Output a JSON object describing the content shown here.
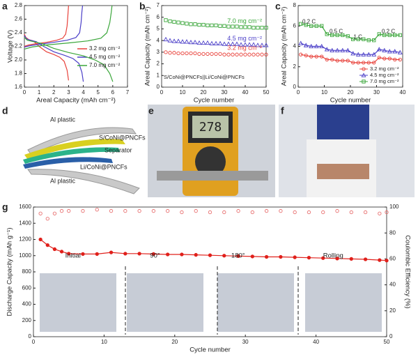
{
  "panels": [
    "a",
    "b",
    "c",
    "d",
    "e",
    "f",
    "g"
  ],
  "schematic_labels": [
    "Al plastic",
    "S/CoNi@PNCFs",
    "Separator",
    "Li/CoNi@PNCFs",
    "Al plastic"
  ],
  "photo_e_display": "278",
  "chart_data": [
    {
      "type": "line",
      "xlabel": "Areal Capacity (mAh cm⁻²)",
      "ylabel": "Voltage (V)",
      "xlim": [
        0,
        7
      ],
      "ylim": [
        1.6,
        2.8
      ],
      "xticks": [
        0,
        1,
        2,
        3,
        4,
        5,
        6,
        7
      ],
      "yticks": [
        1.6,
        1.8,
        {
          "value": 2,
          "label": "2.0"
        },
        2.2,
        2.4,
        2.6,
        2.8
      ],
      "legend": "right",
      "series": [
        {
          "name": "3.2 mg cm⁻²",
          "color": "#e8413a",
          "x": [
            0,
            0.1,
            0.3,
            0.6,
            1.0,
            1.5,
            2.0,
            2.4,
            2.7,
            2.9,
            3.0,
            null,
            0,
            0.3,
            0.8,
            1.5,
            2.2,
            2.6,
            2.8,
            2.9,
            2.95,
            3.0
          ],
          "values": [
            2.38,
            2.33,
            2.3,
            2.28,
            2.2,
            2.12,
            2.08,
            2.04,
            1.98,
            1.85,
            1.7,
            null,
            2.2,
            2.22,
            2.24,
            2.26,
            2.29,
            2.32,
            2.38,
            2.5,
            2.65,
            2.8
          ]
        },
        {
          "name": "4.5 mg cm⁻²",
          "color": "#4b3fc8",
          "x": [
            0,
            0.15,
            0.4,
            0.8,
            1.3,
            2.0,
            2.7,
            3.3,
            3.7,
            3.9,
            4.0,
            null,
            0,
            0.4,
            1.0,
            2.0,
            2.9,
            3.5,
            3.75,
            3.85,
            3.9,
            3.95
          ],
          "values": [
            2.36,
            2.31,
            2.29,
            2.27,
            2.2,
            2.12,
            2.07,
            2.02,
            1.95,
            1.82,
            1.68,
            null,
            2.19,
            2.21,
            2.23,
            2.26,
            2.29,
            2.33,
            2.4,
            2.55,
            2.7,
            2.8
          ]
        },
        {
          "name": "7.0 mg cm⁻²",
          "color": "#3aa63a",
          "x": [
            0,
            0.2,
            0.6,
            1.2,
            2.0,
            3.0,
            4.0,
            4.8,
            5.4,
            5.8,
            6.0,
            null,
            0,
            0.5,
            1.5,
            3.0,
            4.3,
            5.2,
            5.6,
            5.8,
            5.9,
            5.95
          ],
          "values": [
            2.33,
            2.29,
            2.27,
            2.24,
            2.17,
            2.11,
            2.06,
            2.0,
            1.93,
            1.8,
            1.68,
            null,
            2.16,
            2.19,
            2.22,
            2.25,
            2.28,
            2.32,
            2.4,
            2.55,
            2.7,
            2.8
          ]
        }
      ]
    },
    {
      "type": "scatter",
      "xlabel": "Cycle number",
      "ylabel": "Areal Capacity (mAh cm⁻²)",
      "xlim": [
        0,
        50
      ],
      "ylim": [
        0,
        7
      ],
      "xticks": [
        0,
        10,
        20,
        30,
        40,
        50
      ],
      "yticks": [
        0,
        1,
        2,
        3,
        4,
        5,
        6,
        7
      ],
      "legend": "inline",
      "annotations": [
        "S/CoNi@PNCFs||Li/CoNi@PNCFs"
      ],
      "series": [
        {
          "name": "7.0 mg cm⁻²",
          "color": "#3aa63a",
          "marker": "square",
          "x": [
            2,
            4,
            6,
            8,
            10,
            12,
            14,
            16,
            18,
            20,
            22,
            24,
            26,
            28,
            30,
            32,
            34,
            36,
            38,
            40,
            42,
            44,
            46,
            48,
            50
          ],
          "values": [
            5.75,
            5.65,
            5.6,
            5.55,
            5.5,
            5.45,
            5.4,
            5.4,
            5.35,
            5.35,
            5.3,
            5.3,
            5.3,
            5.25,
            5.25,
            5.2,
            5.2,
            5.2,
            5.15,
            5.15,
            5.15,
            5.1,
            5.1,
            5.1,
            5.1
          ]
        },
        {
          "name": "4.5 mg cm⁻²",
          "color": "#4b3fc8",
          "marker": "triangle",
          "x": [
            2,
            4,
            6,
            8,
            10,
            12,
            14,
            16,
            18,
            20,
            22,
            24,
            26,
            28,
            30,
            32,
            34,
            36,
            38,
            40,
            42,
            44,
            46,
            48,
            50
          ],
          "values": [
            4.1,
            4.0,
            3.95,
            3.95,
            3.9,
            3.9,
            3.85,
            3.85,
            3.8,
            3.8,
            3.8,
            3.75,
            3.75,
            3.75,
            3.7,
            3.7,
            3.7,
            3.7,
            3.65,
            3.65,
            3.65,
            3.65,
            3.6,
            3.6,
            3.6
          ]
        },
        {
          "name": "3.2 mg cm⁻²",
          "color": "#e8413a",
          "marker": "circle",
          "x": [
            2,
            4,
            6,
            8,
            10,
            12,
            14,
            16,
            18,
            20,
            22,
            24,
            26,
            28,
            30,
            32,
            34,
            36,
            38,
            40,
            42,
            44,
            46,
            48,
            50
          ],
          "values": [
            3.0,
            2.95,
            2.95,
            2.9,
            2.9,
            2.9,
            2.9,
            2.9,
            2.85,
            2.85,
            2.85,
            2.85,
            2.85,
            2.85,
            2.8,
            2.8,
            2.8,
            2.8,
            2.8,
            2.8,
            2.8,
            2.8,
            2.8,
            2.8,
            2.8
          ]
        }
      ]
    },
    {
      "type": "line",
      "xlabel": "Cycle number",
      "ylabel": "Areal Capacity (mAh cm⁻²)",
      "xlim": [
        0,
        40
      ],
      "ylim": [
        0,
        8
      ],
      "xticks": [
        0,
        10,
        20,
        30,
        40
      ],
      "yticks": [
        0,
        2,
        4,
        6,
        8
      ],
      "legend": "lower right",
      "annotations": [
        "0.2 C",
        "0.5 C",
        "1 C",
        "0.2 C"
      ],
      "series": [
        {
          "name": "3.2 mg cm⁻²",
          "color": "#e8413a",
          "marker": "circle",
          "x": [
            1,
            3,
            5,
            7,
            9,
            11,
            13,
            15,
            17,
            19,
            21,
            23,
            25,
            27,
            29,
            31,
            33,
            35,
            37,
            39
          ],
          "values": [
            3.2,
            3.1,
            3.0,
            3.0,
            3.0,
            2.7,
            2.7,
            2.6,
            2.6,
            2.6,
            2.4,
            2.4,
            2.4,
            2.4,
            2.4,
            2.9,
            2.8,
            2.8,
            2.7,
            2.7
          ]
        },
        {
          "name": "4.5 mg cm⁻²",
          "color": "#4b3fc8",
          "marker": "triangle",
          "x": [
            1,
            3,
            5,
            7,
            9,
            11,
            13,
            15,
            17,
            19,
            21,
            23,
            25,
            27,
            29,
            31,
            33,
            35,
            37,
            39
          ],
          "values": [
            4.3,
            4.1,
            4.0,
            4.0,
            4.0,
            3.7,
            3.6,
            3.6,
            3.6,
            3.6,
            3.3,
            3.2,
            3.2,
            3.2,
            3.2,
            3.7,
            3.6,
            3.5,
            3.5,
            3.4
          ]
        },
        {
          "name": "7.0 mg cm⁻²",
          "color": "#3aa63a",
          "marker": "square",
          "x": [
            1,
            3,
            5,
            7,
            9,
            11,
            13,
            15,
            17,
            19,
            21,
            23,
            25,
            27,
            29,
            31,
            33,
            35,
            37,
            39
          ],
          "values": [
            6.2,
            6.1,
            6.0,
            6.0,
            6.0,
            5.2,
            5.1,
            5.1,
            5.1,
            5.0,
            4.7,
            4.7,
            4.7,
            4.6,
            4.6,
            5.2,
            5.1,
            5.1,
            5.1,
            5.1
          ]
        }
      ]
    },
    {
      "type": "line",
      "xlabel": "Cycle number",
      "ylabel": "Discharge Capacity (mAh g⁻¹)",
      "y2label": "Coulombic Efficiency (%)",
      "xlim": [
        0,
        50
      ],
      "ylim": [
        0,
        1600
      ],
      "y2lim": [
        0,
        100
      ],
      "xticks": [
        0,
        10,
        20,
        30,
        40,
        50
      ],
      "yticks": [
        0,
        200,
        400,
        600,
        800,
        1000,
        1200,
        1400,
        1600
      ],
      "y2ticks": [
        0,
        20,
        40,
        60,
        80,
        100
      ],
      "annotations": [
        "Initial",
        "90°",
        "180°",
        "Rolling"
      ],
      "series": [
        {
          "color": "#e0201b",
          "marker": "circle",
          "filled": true,
          "connect": true,
          "x": [
            1,
            2,
            3,
            4,
            5,
            7,
            9,
            11,
            13,
            15,
            17,
            19,
            21,
            23,
            25,
            27,
            29,
            31,
            33,
            35,
            37,
            39,
            41,
            43,
            45,
            47,
            49,
            50
          ],
          "values": [
            1200,
            1130,
            1080,
            1050,
            1025,
            1020,
            1020,
            1040,
            1025,
            1025,
            1020,
            1015,
            1015,
            1010,
            1005,
            1000,
            995,
            990,
            985,
            985,
            980,
            975,
            970,
            965,
            960,
            955,
            945,
            940
          ]
        },
        {
          "color": "#e87070",
          "marker": "circle",
          "filled": false,
          "connect": false,
          "axis": "y2",
          "x": [
            1,
            2,
            3,
            4,
            5,
            7,
            9,
            11,
            13,
            15,
            17,
            19,
            21,
            23,
            25,
            27,
            29,
            31,
            33,
            35,
            37,
            39,
            41,
            43,
            45,
            47,
            49,
            50
          ],
          "values": [
            95,
            91,
            95,
            97,
            97,
            97,
            98,
            97,
            97,
            97,
            97,
            97,
            96,
            97,
            96,
            96,
            97,
            96,
            97,
            97,
            96,
            96,
            96,
            97,
            96,
            96,
            95,
            96
          ]
        }
      ]
    }
  ]
}
